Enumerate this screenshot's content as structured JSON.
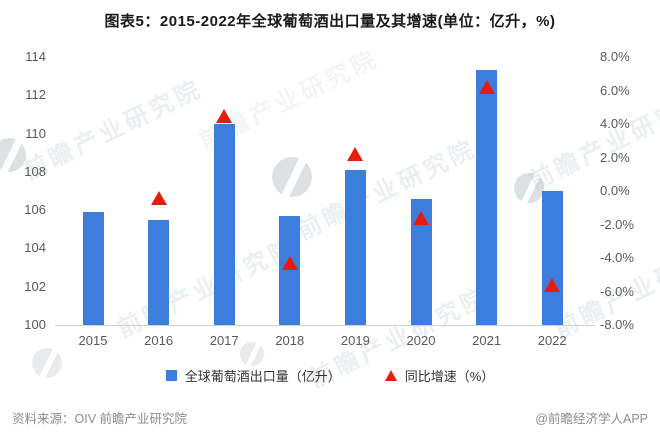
{
  "chart_data": {
    "type": "combo",
    "title": "图表5：2015-2022年全球葡萄酒出口量及其增速(单位：亿升，%)",
    "categories": [
      "2015",
      "2016",
      "2017",
      "2018",
      "2019",
      "2020",
      "2021",
      "2022"
    ],
    "series": [
      {
        "name": "全球葡萄酒出口量（亿升）",
        "type": "bar",
        "axis": "left",
        "color": "#3d7edd",
        "values": [
          105.9,
          105.5,
          110.5,
          105.7,
          108.1,
          106.6,
          113.3,
          107.0
        ]
      },
      {
        "name": "同比增速（%）",
        "type": "scatter_triangle",
        "axis": "right",
        "color": "#e71c0f",
        "values": [
          null,
          -0.4,
          4.5,
          -4.3,
          2.2,
          -1.6,
          6.2,
          -5.6
        ]
      }
    ],
    "left_axis": {
      "min": 100,
      "max": 114,
      "ticks": [
        "114",
        "112",
        "110",
        "108",
        "106",
        "104",
        "102",
        "100"
      ]
    },
    "right_axis": {
      "min": -8,
      "max": 8,
      "ticks": [
        "8.0%",
        "6.0%",
        "4.0%",
        "2.0%",
        "0.0%",
        "-2.0%",
        "-4.0%",
        "-6.0%",
        "-8.0%"
      ]
    },
    "grid": false,
    "legend_position": "bottom"
  },
  "watermark": {
    "text": "前瞻产业研究院"
  },
  "footer": {
    "source": "资料来源：OIV 前瞻产业研究院",
    "credit": "@前瞻经济学人APP"
  },
  "colors": {
    "bar": "#3d7edd",
    "triangle": "#e71c0f",
    "axis_text": "#595959",
    "baseline": "#d0d0d0"
  }
}
